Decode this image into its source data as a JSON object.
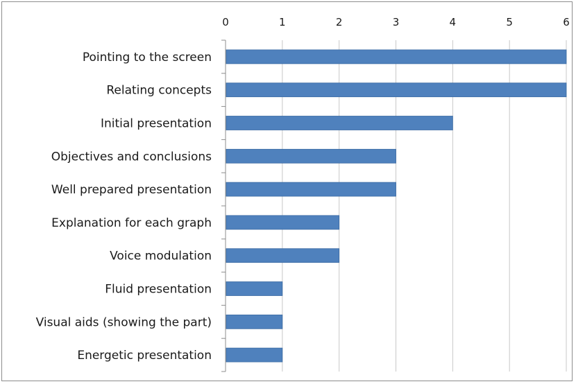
{
  "chart_data": {
    "type": "bar",
    "orientation": "horizontal",
    "title": "",
    "xlabel": "",
    "ylabel": "",
    "xlim": [
      0,
      6
    ],
    "x_ticks": [
      "0",
      "1",
      "2",
      "3",
      "4",
      "5",
      "6"
    ],
    "x_axis_position": "top",
    "grid": true,
    "legend": "none",
    "categories": [
      "Pointing to the screen",
      "Relating concepts",
      "Initial presentation",
      "Objectives and conclusions",
      "Well prepared presentation",
      "Explanation for each graph",
      "Voice modulation",
      "Fluid presentation",
      "Visual aids (showing the part)",
      "Energetic presentation"
    ],
    "values": [
      6,
      6,
      4,
      3,
      3,
      2,
      2,
      1,
      1,
      1
    ],
    "colors": {
      "bar": "#4f81bd",
      "bar_edge": "#3a6aa3",
      "grid": "#c8c8c8",
      "axis": "#8c8c8c"
    }
  }
}
